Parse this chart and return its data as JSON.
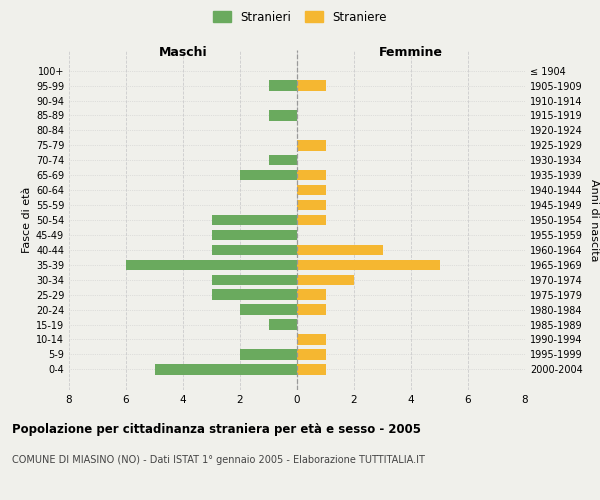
{
  "age_groups": [
    "100+",
    "95-99",
    "90-94",
    "85-89",
    "80-84",
    "75-79",
    "70-74",
    "65-69",
    "60-64",
    "55-59",
    "50-54",
    "45-49",
    "40-44",
    "35-39",
    "30-34",
    "25-29",
    "20-24",
    "15-19",
    "10-14",
    "5-9",
    "0-4"
  ],
  "birth_years": [
    "≤ 1904",
    "1905-1909",
    "1910-1914",
    "1915-1919",
    "1920-1924",
    "1925-1929",
    "1930-1934",
    "1935-1939",
    "1940-1944",
    "1945-1949",
    "1950-1954",
    "1955-1959",
    "1960-1964",
    "1965-1969",
    "1970-1974",
    "1975-1979",
    "1980-1984",
    "1985-1989",
    "1990-1994",
    "1995-1999",
    "2000-2004"
  ],
  "maschi": [
    0,
    1,
    0,
    1,
    0,
    0,
    1,
    2,
    0,
    0,
    3,
    3,
    3,
    6,
    3,
    3,
    2,
    1,
    0,
    2,
    5
  ],
  "femmine": [
    0,
    1,
    0,
    0,
    0,
    1,
    0,
    1,
    1,
    1,
    1,
    0,
    3,
    5,
    2,
    1,
    1,
    0,
    1,
    1,
    1
  ],
  "color_maschi": "#6aaa5e",
  "color_femmine": "#f5b731",
  "title": "Popolazione per cittadinanza straniera per età e sesso - 2005",
  "subtitle": "COMUNE DI MIASINO (NO) - Dati ISTAT 1° gennaio 2005 - Elaborazione TUTTITALIA.IT",
  "ylabel_left": "Fasce di età",
  "ylabel_right": "Anni di nascita",
  "header_left": "Maschi",
  "header_right": "Femmine",
  "legend_maschi": "Stranieri",
  "legend_femmine": "Straniere",
  "xlim": 8,
  "background_color": "#f0f0eb"
}
